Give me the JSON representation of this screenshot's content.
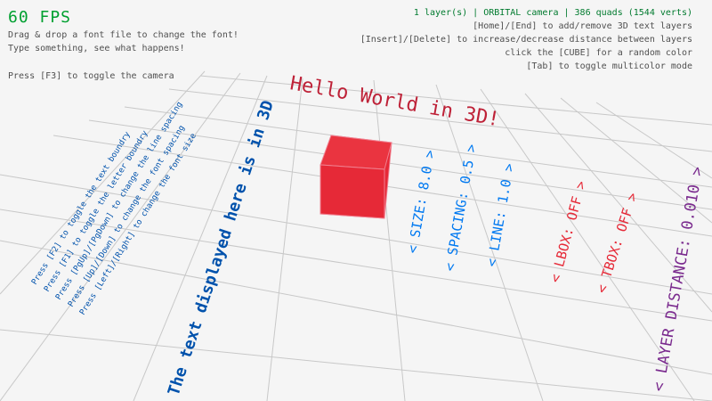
{
  "fps": "60 FPS",
  "help_left": [
    "Drag & drop a font file to change the font!",
    "Type something, see what happens!",
    "Press [F3] to toggle the camera"
  ],
  "status": "1 layer(s) | ORBITAL camera |  386 quads (1544 verts)",
  "help_right": [
    "[Home]/[End] to add/remove 3D text layers",
    "[Insert]/[Delete] to increase/decrease distance between layers",
    "click the [CUBE] for a random color",
    "[Tab] to toggle multicolor mode"
  ],
  "scene": {
    "hello": "Hello World in 3D!",
    "instructions": [
      "Press [F2] to toggle the text boundry",
      "Press [F1] to toggle the letter boundry",
      "Press [PgUp]/[PgDown] to change the line spacing",
      "Press [Up]/[Down] to change the font spacing",
      "Press [Left]/[Right] to change the font size"
    ],
    "big_text": "The text displayed here is in 3D",
    "options": [
      {
        "label": "< SIZE: 8.0 >",
        "color": "#0079f1"
      },
      {
        "label": "< SPACING: 0.5 >",
        "color": "#0079f1"
      },
      {
        "label": "< LINE: 1.0 >",
        "color": "#0079f1"
      },
      {
        "label": "< LBOX: OFF >",
        "color": "#e62937"
      },
      {
        "label": "< TBOX: OFF >",
        "color": "#e62937"
      },
      {
        "label": "< LAYER DISTANCE: 0.010 >",
        "color": "#7a2a8e"
      }
    ],
    "cube_color": "#e62937",
    "text_color": "#0052ac",
    "hello_color": "#be2137"
  }
}
